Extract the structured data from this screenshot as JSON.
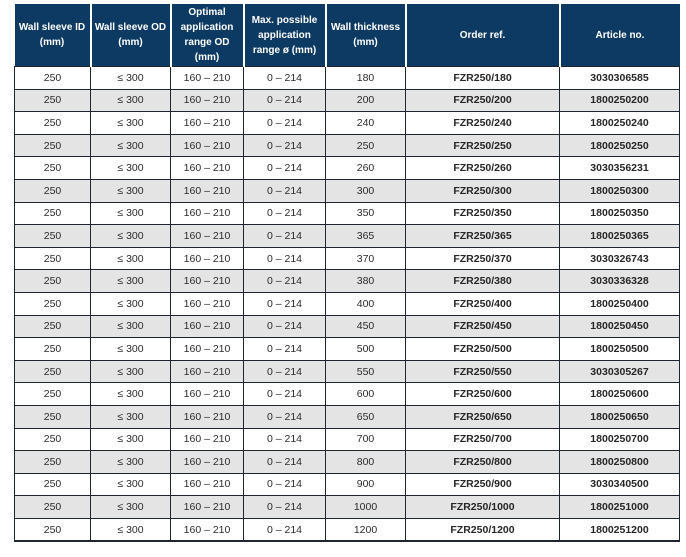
{
  "colors": {
    "header_bg": "#0d3a63",
    "header_text": "#ffffff",
    "row_alt_bg": "#e4e4e4",
    "border": "#1e2430",
    "body_text": "#2b2b2b"
  },
  "table": {
    "columns": [
      "Wall sleeve ID (mm)",
      "Wall sleeve OD (mm)",
      "Optimal application range OD (mm)",
      "Max. possible application range ø (mm)",
      "Wall thickness (mm)",
      "Order ref.",
      "Article no."
    ],
    "rows": [
      [
        "250",
        "≤ 300",
        "160 – 210",
        "0 – 214",
        "180",
        "FZR250/180",
        "3030306585"
      ],
      [
        "250",
        "≤ 300",
        "160 – 210",
        "0 – 214",
        "200",
        "FZR250/200",
        "1800250200"
      ],
      [
        "250",
        "≤ 300",
        "160 – 210",
        "0 – 214",
        "240",
        "FZR250/240",
        "1800250240"
      ],
      [
        "250",
        "≤ 300",
        "160 – 210",
        "0 – 214",
        "250",
        "FZR250/250",
        "1800250250"
      ],
      [
        "250",
        "≤ 300",
        "160 – 210",
        "0 – 214",
        "260",
        "FZR250/260",
        "3030356231"
      ],
      [
        "250",
        "≤ 300",
        "160 – 210",
        "0 – 214",
        "300",
        "FZR250/300",
        "1800250300"
      ],
      [
        "250",
        "≤ 300",
        "160 – 210",
        "0 – 214",
        "350",
        "FZR250/350",
        "1800250350"
      ],
      [
        "250",
        "≤ 300",
        "160 – 210",
        "0 – 214",
        "365",
        "FZR250/365",
        "1800250365"
      ],
      [
        "250",
        "≤ 300",
        "160 – 210",
        "0 – 214",
        "370",
        "FZR250/370",
        "3030326743"
      ],
      [
        "250",
        "≤ 300",
        "160 – 210",
        "0 – 214",
        "380",
        "FZR250/380",
        "3030336328"
      ],
      [
        "250",
        "≤ 300",
        "160 – 210",
        "0 – 214",
        "400",
        "FZR250/400",
        "1800250400"
      ],
      [
        "250",
        "≤ 300",
        "160 – 210",
        "0 – 214",
        "450",
        "FZR250/450",
        "1800250450"
      ],
      [
        "250",
        "≤ 300",
        "160 – 210",
        "0 – 214",
        "500",
        "FZR250/500",
        "1800250500"
      ],
      [
        "250",
        "≤ 300",
        "160 – 210",
        "0 – 214",
        "550",
        "FZR250/550",
        "3030305267"
      ],
      [
        "250",
        "≤ 300",
        "160 – 210",
        "0 – 214",
        "600",
        "FZR250/600",
        "1800250600"
      ],
      [
        "250",
        "≤ 300",
        "160 – 210",
        "0 – 214",
        "650",
        "FZR250/650",
        "1800250650"
      ],
      [
        "250",
        "≤ 300",
        "160 – 210",
        "0 – 214",
        "700",
        "FZR250/700",
        "1800250700"
      ],
      [
        "250",
        "≤ 300",
        "160 – 210",
        "0 – 214",
        "800",
        "FZR250/800",
        "1800250800"
      ],
      [
        "250",
        "≤ 300",
        "160 – 210",
        "0 – 214",
        "900",
        "FZR250/900",
        "3030340500"
      ],
      [
        "250",
        "≤ 300",
        "160 – 210",
        "0 – 214",
        "1000",
        "FZR250/1000",
        "1800251000"
      ],
      [
        "250",
        "≤ 300",
        "160 – 210",
        "0 – 214",
        "1200",
        "FZR250/1200",
        "1800251200"
      ]
    ],
    "bold_columns": [
      5,
      6
    ]
  }
}
